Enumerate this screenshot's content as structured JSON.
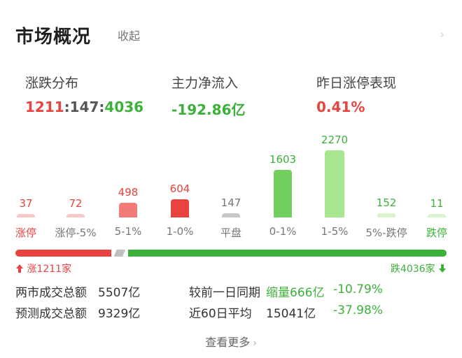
{
  "header": {
    "title": "市场概况",
    "collapse_label": "收起",
    "more_icon": "chevron-right-icon"
  },
  "stats": {
    "distribution": {
      "label": "涨跌分布",
      "up": "1211",
      "sep1": ":",
      "flat": "147",
      "sep2": ":",
      "down": "4036"
    },
    "main_inflow": {
      "label": "主力净流入",
      "value": "-192.86亿"
    },
    "yesterday_limit": {
      "label": "昨日涨停表现",
      "value": "0.41%"
    }
  },
  "chart_data": {
    "type": "bar",
    "categories": [
      "涨停",
      "涨停-5%",
      "5-1%",
      "1-0%",
      "平盘",
      "0-1%",
      "1-5%",
      "5%-跌停",
      "跌停"
    ],
    "values": [
      37,
      72,
      498,
      604,
      147,
      1603,
      2270,
      152,
      11
    ],
    "colors": [
      "#f9c9c7",
      "#f9c9c7",
      "#f07b77",
      "#e8433f",
      "#c8c8c8",
      "#72cf5e",
      "#a8e690",
      "#d8f4cd",
      "#d8f4cd"
    ],
    "value_colors": [
      "#e8433f",
      "#e8433f",
      "#e8433f",
      "#e8433f",
      "#777777",
      "#3cb03a",
      "#3cb03a",
      "#3cb03a",
      "#3cb03a"
    ],
    "label_colors": [
      "#e8433f",
      "#777777",
      "#777777",
      "#777777",
      "#777777",
      "#777777",
      "#777777",
      "#777777",
      "#3cb03a"
    ]
  },
  "ratio": {
    "up": 1211,
    "flat": 147,
    "down": 4036,
    "up_color": "#e8433f",
    "flat_color": "#c0c0c0",
    "down_color": "#3cb03a"
  },
  "up_down": {
    "up_label": "涨1211家",
    "down_label": "跌4036家"
  },
  "rows": [
    {
      "k": "两市成交总额",
      "v": "5507亿",
      "k2": "较前一日同期",
      "v2": "缩量666亿",
      "v3": "-10.79%"
    },
    {
      "k": "预测成交总额",
      "v": "9329亿",
      "k2": "近60日平均",
      "v2": "15041亿",
      "v3": "-37.98%"
    }
  ],
  "more": {
    "label": "查看更多"
  }
}
